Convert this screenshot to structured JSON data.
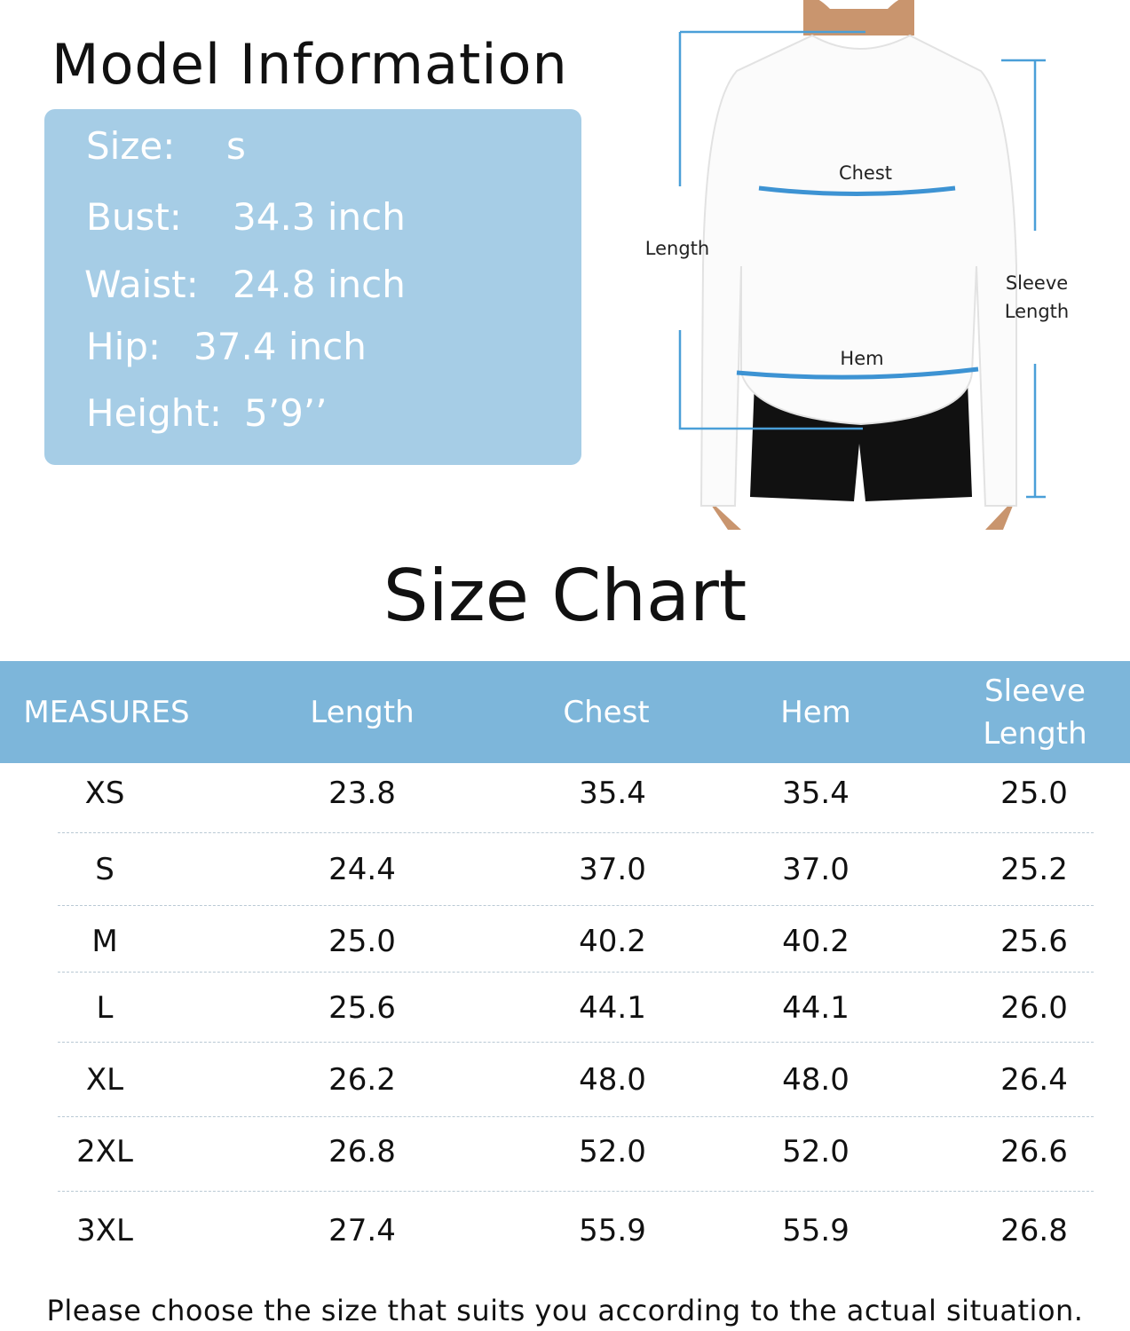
{
  "model_info": {
    "title": "Model Information",
    "lines": [
      {
        "label": "Size:",
        "value": "s"
      },
      {
        "label": "Bust:",
        "value": "34.3 inch"
      },
      {
        "label": "Waist:",
        "value": "24.8 inch"
      },
      {
        "label": "Hip:",
        "value": "37.4 inch"
      },
      {
        "label": "Height:",
        "value": "5’9’’"
      }
    ],
    "box_color": "#a6cde6"
  },
  "diagram": {
    "labels": {
      "chest": "Chest",
      "length": "Length",
      "sleeve": "Sleeve Length",
      "hem": "Hem"
    },
    "line_color": "#4a9fd8"
  },
  "size_chart": {
    "title": "Size Chart",
    "header_color": "#7db6da",
    "columns": [
      "MEASURES",
      "Length",
      "Chest",
      "Hem",
      "Sleeve Length"
    ],
    "rows": [
      [
        "XS",
        "23.8",
        "35.4",
        "35.4",
        "25.0"
      ],
      [
        "S",
        "24.4",
        "37.0",
        "37.0",
        "25.2"
      ],
      [
        "M",
        "25.0",
        "40.2",
        "40.2",
        "25.6"
      ],
      [
        "L",
        "25.6",
        "44.1",
        "44.1",
        "26.0"
      ],
      [
        "XL",
        "26.2",
        "48.0",
        "48.0",
        "26.4"
      ],
      [
        "2XL",
        "26.8",
        "52.0",
        "52.0",
        "26.6"
      ],
      [
        "3XL",
        "27.4",
        "55.9",
        "55.9",
        "26.8"
      ]
    ]
  },
  "footer": "Please choose the size that suits you according to the actual situation."
}
